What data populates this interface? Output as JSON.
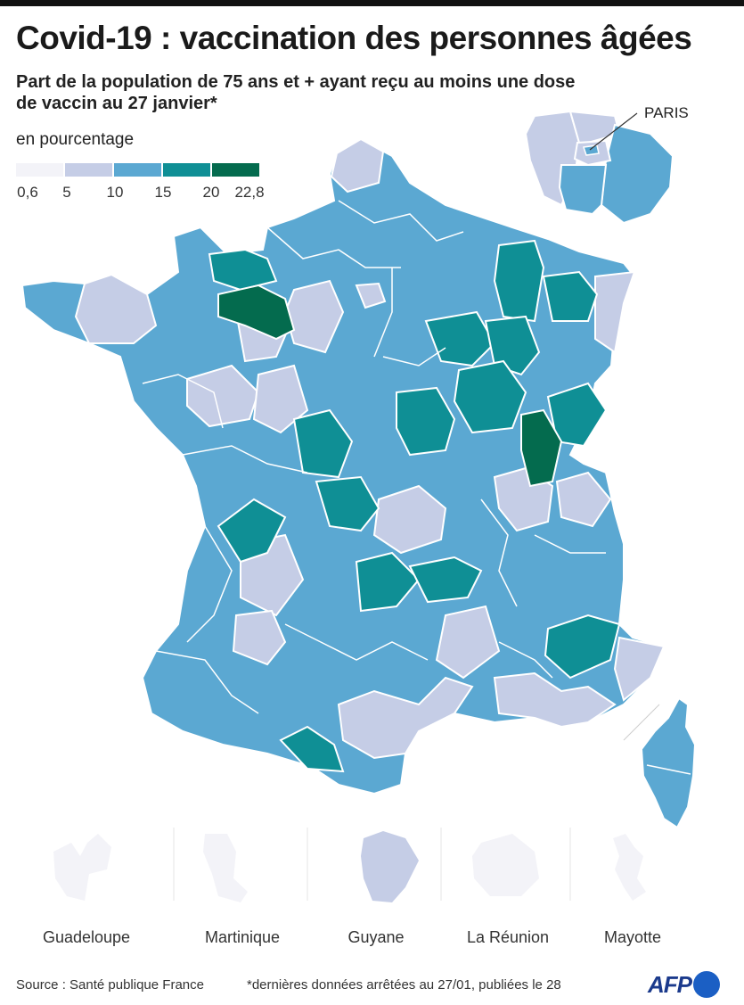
{
  "title": "Covid-19 : vaccination des personnes âgées",
  "subtitle": "Part de la population de 75 ans et + ayant reçu au moins une dose de vaccin au 27 janvier*",
  "unit_label": "en pourcentage",
  "legend": {
    "ticks": [
      "0,6",
      "5",
      "10",
      "15",
      "20",
      "22,8"
    ],
    "classes": [
      {
        "min": 0.6,
        "max": 5,
        "color": "#f3f3f8"
      },
      {
        "min": 5,
        "max": 10,
        "color": "#c5cde6"
      },
      {
        "min": 10,
        "max": 15,
        "color": "#5ba8d2"
      },
      {
        "min": 15,
        "max": 20,
        "color": "#0f8f95"
      },
      {
        "min": 20,
        "max": 22.8,
        "color": "#046b4e"
      }
    ]
  },
  "colors": {
    "class_0": "#f3f3f8",
    "class_1": "#c5cde6",
    "class_2": "#5ba8d2",
    "class_3": "#0f8f95",
    "class_4": "#046b4e",
    "afp_blue": "#1b3a8c"
  },
  "inset_label": "PARIS",
  "overseas": [
    {
      "name": "Guadeloupe",
      "class": 0
    },
    {
      "name": "Martinique",
      "class": 0
    },
    {
      "name": "Guyane",
      "class": 1
    },
    {
      "name": "La Réunion",
      "class": 0
    },
    {
      "name": "Mayotte",
      "class": 0
    }
  ],
  "source": "Source : Santé publique France",
  "footnote": "*dernières données arrêtées au 27/01, publiées le 28",
  "logo": "AFP"
}
